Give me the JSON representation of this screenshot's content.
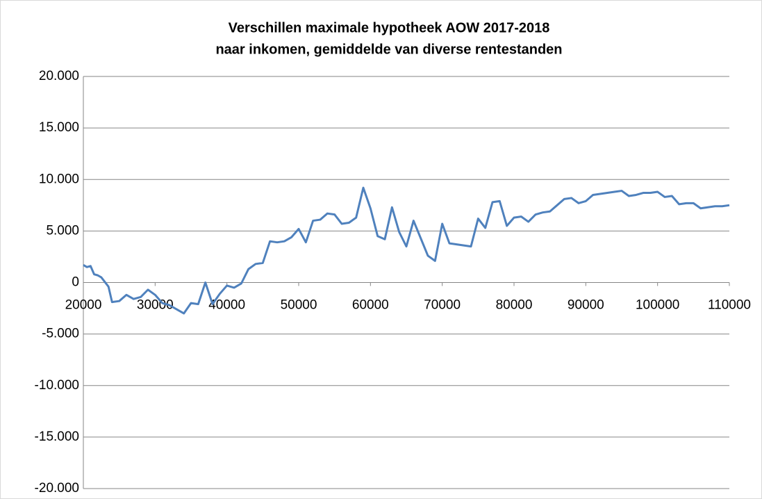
{
  "chart_data": {
    "type": "line",
    "title": [
      "Verschillen maximale hypotheek AOW 2017-2018",
      "naar inkomen, gemiddelde van diverse rentestanden"
    ],
    "x": [
      20000,
      20500,
      21000,
      21500,
      22000,
      22500,
      23500,
      24000,
      25000,
      26000,
      27000,
      28000,
      29000,
      30000,
      31000,
      32000,
      33000,
      34000,
      35000,
      36000,
      37000,
      38000,
      39000,
      40000,
      41000,
      42000,
      43000,
      44000,
      45000,
      46000,
      47000,
      48000,
      49000,
      50000,
      51000,
      52000,
      53000,
      54000,
      55000,
      56000,
      57000,
      58000,
      59000,
      60000,
      61000,
      62000,
      63000,
      64000,
      65000,
      66000,
      67000,
      68000,
      69000,
      70000,
      71000,
      72000,
      73000,
      74000,
      75000,
      76000,
      77000,
      78000,
      79000,
      80000,
      81000,
      82000,
      83000,
      84000,
      85000,
      86000,
      87000,
      88000,
      89000,
      90000,
      91000,
      92000,
      93000,
      94000,
      95000,
      96000,
      97000,
      98000,
      99000,
      100000,
      101000,
      102000,
      103000,
      104000,
      105000,
      106000,
      107000,
      108000,
      109000,
      110000
    ],
    "series": [
      {
        "name": null,
        "color": "#4f81bd",
        "values": [
          1700,
          1500,
          1600,
          800,
          700,
          500,
          -400,
          -1900,
          -1800,
          -1200,
          -1600,
          -1400,
          -700,
          -1200,
          -2000,
          -2200,
          -2600,
          -3000,
          -2000,
          -2100,
          0,
          -2100,
          -1100,
          -300,
          -500,
          -100,
          1300,
          1800,
          1900,
          4000,
          3900,
          4000,
          4400,
          5200,
          3900,
          6000,
          6100,
          6700,
          6600,
          5700,
          5800,
          6300,
          9200,
          7200,
          4500,
          4200,
          7300,
          4900,
          3500,
          6000,
          4300,
          2600,
          2100,
          5700,
          3800,
          3700,
          3600,
          3500,
          6200,
          5300,
          7800,
          7900,
          5500,
          6300,
          6400,
          5900,
          6600,
          6800,
          6900,
          7500,
          8100,
          8200,
          7700,
          7900,
          8500,
          8600,
          8700,
          8800,
          8900,
          8400,
          8500,
          8700,
          8700,
          8800,
          8300,
          8400,
          7600,
          7700,
          7700,
          7200,
          7300,
          7400,
          7400,
          7500
        ]
      }
    ],
    "xlim": [
      20000,
      110000
    ],
    "xticks": [
      20000,
      30000,
      40000,
      50000,
      60000,
      70000,
      80000,
      90000,
      100000,
      110000
    ],
    "ylim": [
      -20000,
      20000
    ],
    "yticks": [
      {
        "value": -20000,
        "label": "-20.000"
      },
      {
        "value": -15000,
        "label": "-15.000"
      },
      {
        "value": -10000,
        "label": "-10.000"
      },
      {
        "value": -5000,
        "label": "-5.000"
      },
      0,
      {
        "value": 5000,
        "label": "5.000"
      },
      {
        "value": 10000,
        "label": "10.000"
      },
      {
        "value": 15000,
        "label": "15.000"
      },
      {
        "value": 20000,
        "label": "20.000"
      }
    ],
    "grid": true
  }
}
